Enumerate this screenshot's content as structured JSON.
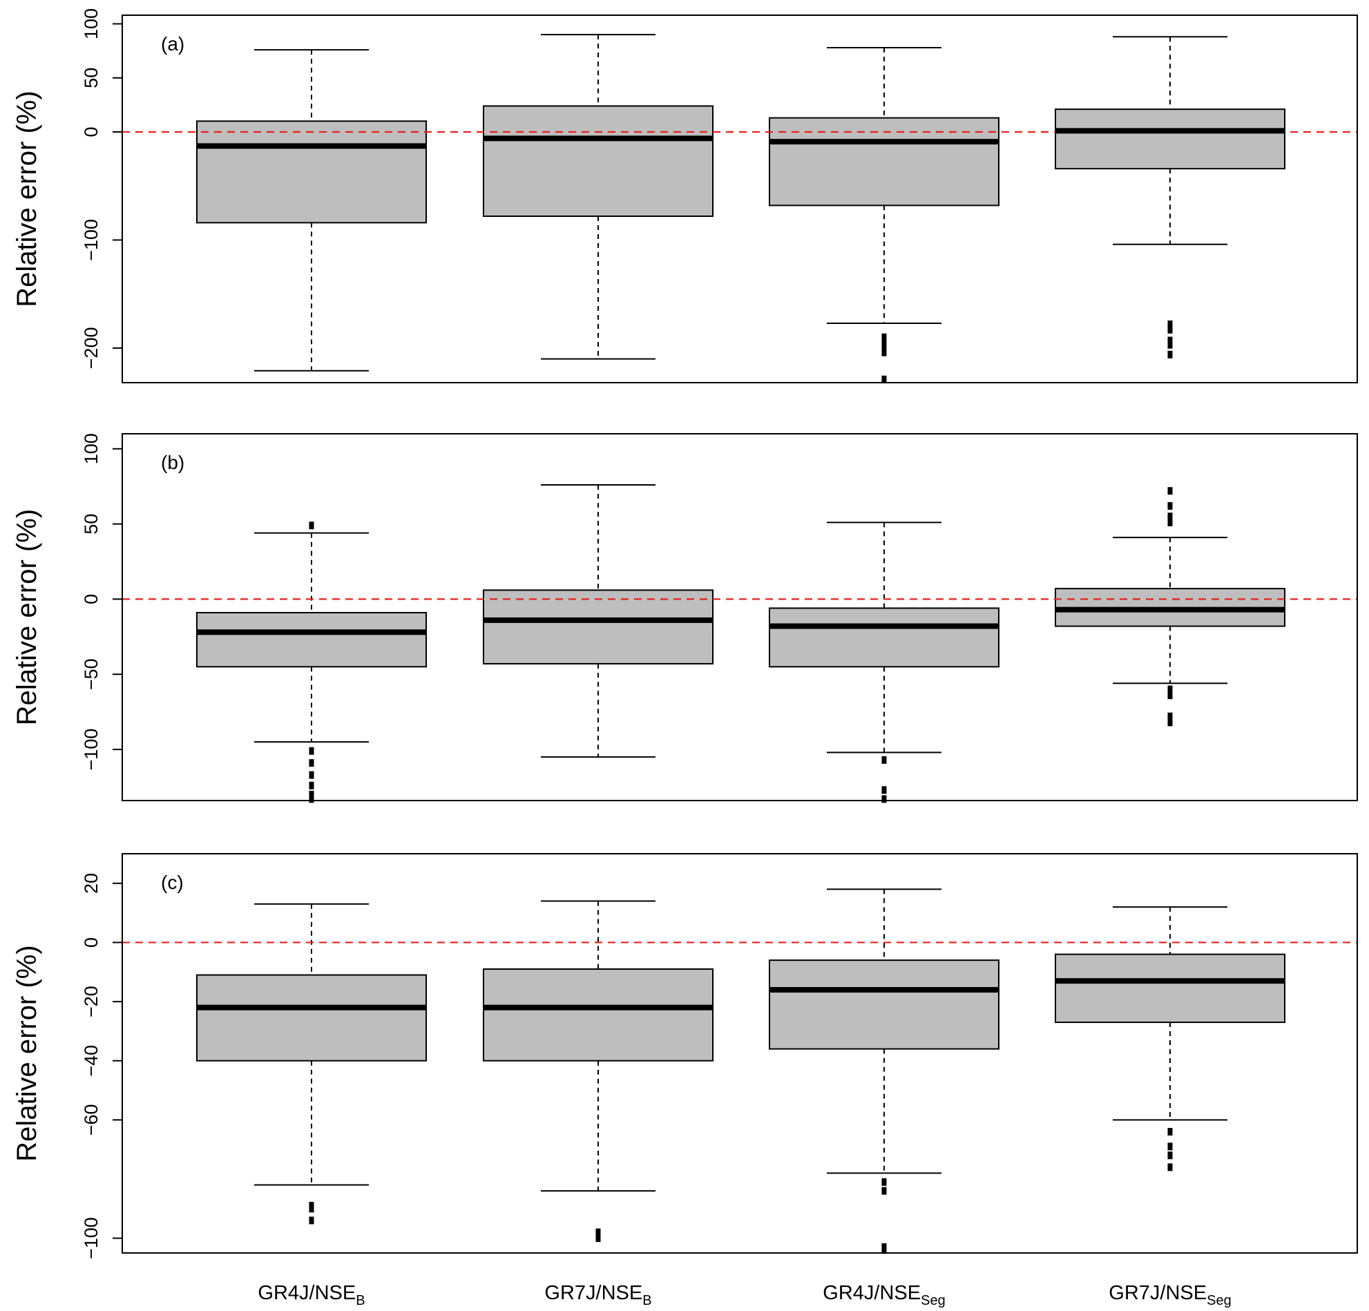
{
  "figure": {
    "categories": [
      {
        "base": "GR4J/NSE",
        "sub": "B"
      },
      {
        "base": "GR7J/NSE",
        "sub": "B"
      },
      {
        "base": "GR4J/NSE",
        "sub": "Seg"
      },
      {
        "base": "GR7J/NSE",
        "sub": "Seg"
      }
    ],
    "colors": {
      "box_fill": "#bebebe",
      "box_stroke": "#000000",
      "reference_line": "#e8201c",
      "median": "#000000"
    }
  },
  "chart_data": [
    {
      "type": "boxplot",
      "panel_label": "(a)",
      "ylabel": "Relative error (%)",
      "ylim": [
        -232,
        108
      ],
      "yticks": [
        -200,
        -100,
        0,
        50,
        100
      ],
      "ytick_labels": [
        "−200",
        "−100",
        "0",
        "50",
        "100"
      ],
      "reference_line": 0,
      "grid": false,
      "boxes": [
        {
          "category": "GR4J/NSE_B",
          "whisker_low": -221,
          "q1": -84,
          "median": -13,
          "q3": 10,
          "whisker_high": 76,
          "outliers": []
        },
        {
          "category": "GR7J/NSE_B",
          "whisker_low": -210,
          "q1": -78,
          "median": -6,
          "q3": 24,
          "whisker_high": 90,
          "outliers": []
        },
        {
          "category": "GR4J/NSE_Seg",
          "whisker_low": -177,
          "q1": -68,
          "median": -9,
          "q3": 13,
          "whisker_high": 78,
          "outliers": [
            -190,
            -195,
            -200,
            -204,
            -229
          ]
        },
        {
          "category": "GR7J/NSE_Seg",
          "whisker_low": -104,
          "q1": -34,
          "median": 1,
          "q3": 21,
          "whisker_high": 88,
          "outliers": [
            -178,
            -183,
            -193,
            -197,
            -206
          ]
        }
      ]
    },
    {
      "type": "boxplot",
      "panel_label": "(b)",
      "ylabel": "Relative error (%)",
      "ylim": [
        -134,
        110
      ],
      "yticks": [
        -100,
        -50,
        0,
        50,
        100
      ],
      "ytick_labels": [
        "−100",
        "−50",
        "0",
        "50",
        "100"
      ],
      "reference_line": 0,
      "grid": false,
      "boxes": [
        {
          "category": "GR4J/NSE_B",
          "whisker_low": -95,
          "q1": -45,
          "median": -22,
          "q3": -9,
          "whisker_high": 44,
          "outliers": [
            49,
            -101,
            -109,
            -117,
            -124,
            -130,
            -133
          ]
        },
        {
          "category": "GR7J/NSE_B",
          "whisker_low": -105,
          "q1": -43,
          "median": -14,
          "q3": 6,
          "whisker_high": 76,
          "outliers": []
        },
        {
          "category": "GR4J/NSE_Seg",
          "whisker_low": -102,
          "q1": -45,
          "median": -18,
          "q3": -6,
          "whisker_high": 51,
          "outliers": [
            -107,
            -127,
            -133
          ]
        },
        {
          "category": "GR7J/NSE_Seg",
          "whisker_low": -56,
          "q1": -18,
          "median": -7,
          "q3": 7,
          "whisker_high": 41,
          "outliers": [
            72,
            62,
            55,
            51,
            -60,
            -64,
            -78,
            -82
          ]
        }
      ]
    },
    {
      "type": "boxplot",
      "panel_label": "(c)",
      "ylabel": "Relative error (%)",
      "ylim": [
        -105,
        30
      ],
      "yticks": [
        -100,
        -60,
        -40,
        -20,
        0,
        20
      ],
      "ytick_labels": [
        "−100",
        "−60",
        "−40",
        "−20",
        "0",
        "20"
      ],
      "reference_line": 0,
      "grid": false,
      "boxes": [
        {
          "category": "GR4J/NSE_B",
          "whisker_low": -82,
          "q1": -40,
          "median": -22,
          "q3": -11,
          "whisker_high": 13,
          "outliers": [
            -89,
            -90,
            -94
          ]
        },
        {
          "category": "GR7J/NSE_B",
          "whisker_low": -84,
          "q1": -40,
          "median": -22,
          "q3": -9,
          "whisker_high": 14,
          "outliers": [
            -98,
            -99,
            -100
          ]
        },
        {
          "category": "GR4J/NSE_Seg",
          "whisker_low": -78,
          "q1": -36,
          "median": -16,
          "q3": -6,
          "whisker_high": 18,
          "outliers": [
            -81,
            -84,
            -103,
            -104
          ]
        },
        {
          "category": "GR7J/NSE_Seg",
          "whisker_low": -60,
          "q1": -27,
          "median": -13,
          "q3": -4,
          "whisker_high": 12,
          "outliers": [
            -64,
            -69,
            -72,
            -76
          ]
        }
      ]
    }
  ]
}
